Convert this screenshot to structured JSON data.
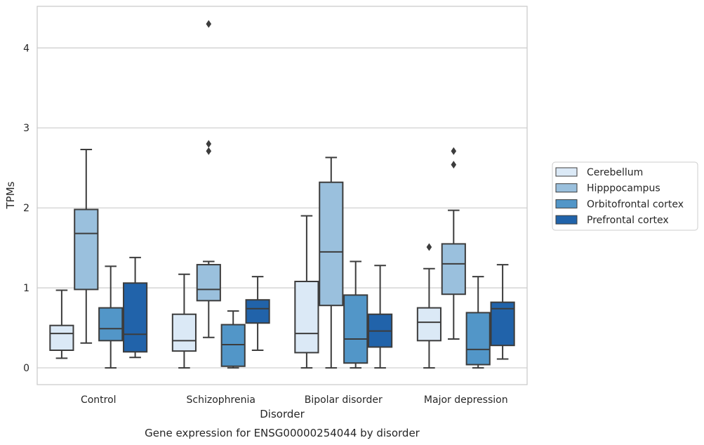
{
  "caption": "Gene expression for ENSG00000254044 by disorder",
  "chart_data": {
    "type": "box",
    "xlabel": "Disorder",
    "ylabel": "TPMs",
    "ylim": [
      -0.21,
      4.52
    ],
    "yticks": [
      0,
      1,
      2,
      3,
      4
    ],
    "grid": "horizontal",
    "legend_position": "right",
    "categories": [
      "Control",
      "Schizophrenia",
      "Bipolar disorder",
      "Major depression"
    ],
    "series": [
      {
        "name": "Cerebellum",
        "color": "#dbe9f6",
        "boxes": [
          {
            "whisker_low": 0.12,
            "q1": 0.22,
            "median": 0.43,
            "q3": 0.53,
            "whisker_high": 0.97,
            "outliers": []
          },
          {
            "whisker_low": 0.0,
            "q1": 0.21,
            "median": 0.34,
            "q3": 0.67,
            "whisker_high": 1.17,
            "outliers": []
          },
          {
            "whisker_low": 0.0,
            "q1": 0.19,
            "median": 0.43,
            "q3": 1.08,
            "whisker_high": 1.9,
            "outliers": []
          },
          {
            "whisker_low": 0.0,
            "q1": 0.34,
            "median": 0.57,
            "q3": 0.75,
            "whisker_high": 1.24,
            "outliers": [
              1.51
            ]
          }
        ]
      },
      {
        "name": "Hipppocampus",
        "color": "#9ac0dd",
        "boxes": [
          {
            "whisker_low": 0.31,
            "q1": 0.98,
            "median": 1.68,
            "q3": 1.98,
            "whisker_high": 2.73,
            "outliers": []
          },
          {
            "whisker_low": 0.38,
            "q1": 0.84,
            "median": 0.98,
            "q3": 1.29,
            "whisker_high": 1.33,
            "outliers": [
              2.71,
              2.8,
              4.3
            ]
          },
          {
            "whisker_low": 0.0,
            "q1": 0.78,
            "median": 1.45,
            "q3": 2.32,
            "whisker_high": 2.63,
            "outliers": []
          },
          {
            "whisker_low": 0.36,
            "q1": 0.92,
            "median": 1.3,
            "q3": 1.55,
            "whisker_high": 1.97,
            "outliers": [
              2.54,
              2.71
            ]
          }
        ]
      },
      {
        "name": "Orbitofrontal cortex",
        "color": "#5296c8",
        "boxes": [
          {
            "whisker_low": 0.0,
            "q1": 0.34,
            "median": 0.49,
            "q3": 0.75,
            "whisker_high": 1.27,
            "outliers": []
          },
          {
            "whisker_low": 0.0,
            "q1": 0.02,
            "median": 0.29,
            "q3": 0.54,
            "whisker_high": 0.71,
            "outliers": []
          },
          {
            "whisker_low": 0.0,
            "q1": 0.06,
            "median": 0.36,
            "q3": 0.91,
            "whisker_high": 1.33,
            "outliers": []
          },
          {
            "whisker_low": 0.0,
            "q1": 0.04,
            "median": 0.23,
            "q3": 0.69,
            "whisker_high": 1.14,
            "outliers": []
          }
        ]
      },
      {
        "name": "Prefrontal cortex",
        "color": "#2163aa",
        "boxes": [
          {
            "whisker_low": 0.13,
            "q1": 0.2,
            "median": 0.42,
            "q3": 1.06,
            "whisker_high": 1.38,
            "outliers": []
          },
          {
            "whisker_low": 0.22,
            "q1": 0.56,
            "median": 0.74,
            "q3": 0.85,
            "whisker_high": 1.14,
            "outliers": []
          },
          {
            "whisker_low": 0.0,
            "q1": 0.26,
            "median": 0.46,
            "q3": 0.67,
            "whisker_high": 1.28,
            "outliers": []
          },
          {
            "whisker_low": 0.11,
            "q1": 0.28,
            "median": 0.74,
            "q3": 0.82,
            "whisker_high": 1.29,
            "outliers": []
          }
        ]
      }
    ]
  }
}
